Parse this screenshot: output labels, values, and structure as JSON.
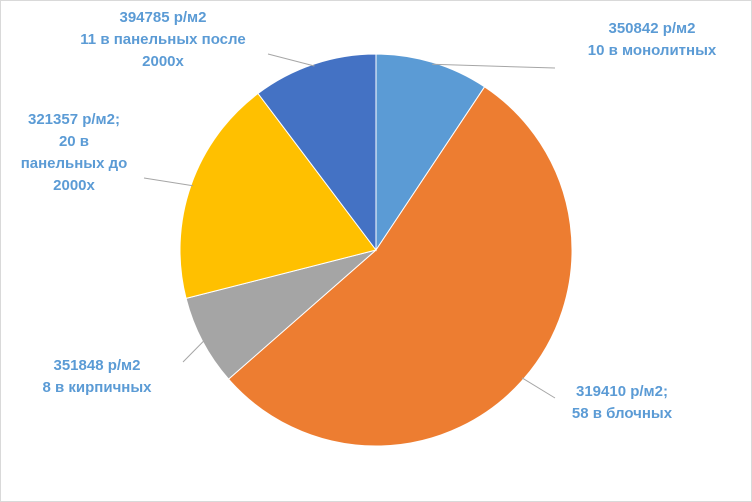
{
  "chart_data": {
    "type": "pie",
    "title": "",
    "label_color": "#5b9bd5",
    "leader_color": "#a6a6a6",
    "border_color": "#d9d9d9",
    "slices": [
      {
        "value": 10,
        "color": "#5b9bd5",
        "label_lines": [
          "350842 р/м2",
          "10 в монолитных"
        ]
      },
      {
        "value": 58,
        "color": "#ed7d31",
        "label_lines": [
          "319410 р/м2;",
          "58 в блочных"
        ]
      },
      {
        "value": 8,
        "color": "#a5a5a5",
        "label_lines": [
          "351848 р/м2",
          "8 в кирпичных"
        ]
      },
      {
        "value": 20,
        "color": "#ffc000",
        "label_lines": [
          "321357 р/м2;",
          "20 в",
          "панельных до",
          "2000х"
        ]
      },
      {
        "value": 11,
        "color": "#4472c4",
        "label_lines": [
          "394785 р/м2",
          "11 в панельных после",
          "2000х"
        ]
      }
    ]
  }
}
